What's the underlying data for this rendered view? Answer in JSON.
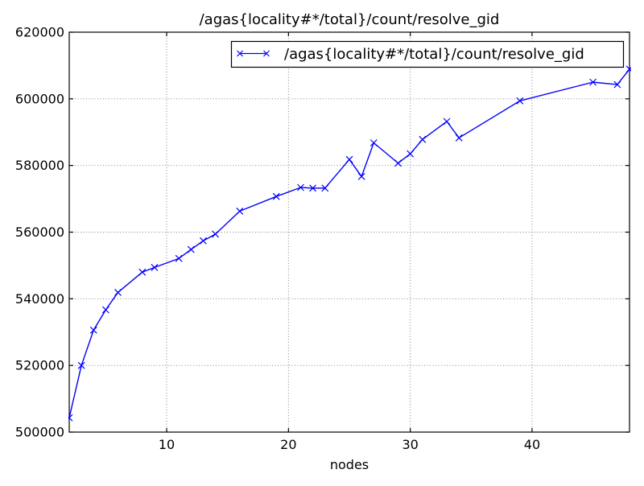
{
  "window": {
    "title": "/agas{locality#*/total}/count/resolve_gid"
  },
  "colors": {
    "line": "#0000ff",
    "grid": "#777777",
    "frame": "#000000",
    "text": "#000000",
    "background": "#ffffff"
  },
  "chart_data": {
    "type": "line",
    "title": "/agas{locality#*/total}/count/resolve_gid",
    "xlabel": "nodes",
    "ylabel": "",
    "xlim": [
      2,
      48
    ],
    "ylim": [
      500000,
      620000
    ],
    "xticks": [
      10,
      20,
      30,
      40
    ],
    "yticks": [
      500000,
      520000,
      540000,
      560000,
      580000,
      600000,
      620000
    ],
    "grid": true,
    "grid_style": "dotted",
    "legend_position": "upper right",
    "legend": {
      "label": "/agas{locality#*/total}/count/resolve_gid",
      "marker": "x"
    },
    "series": [
      {
        "name": "/agas{locality#*/total}/count/resolve_gid",
        "color": "#0000ff",
        "marker": "x",
        "x": [
          2,
          3,
          4,
          5,
          6,
          8,
          9,
          11,
          12,
          13,
          14,
          16,
          19,
          21,
          22,
          23,
          25,
          26,
          27,
          29,
          30,
          31,
          33,
          34,
          39,
          45,
          47,
          48
        ],
        "y": [
          504300,
          520000,
          530600,
          536700,
          541900,
          548000,
          549400,
          552100,
          554800,
          557400,
          559400,
          566300,
          570700,
          573400,
          573200,
          573200,
          581800,
          576700,
          586800,
          580700,
          583500,
          587800,
          593200,
          588300,
          599400,
          605000,
          604300,
          608900
        ]
      }
    ]
  }
}
